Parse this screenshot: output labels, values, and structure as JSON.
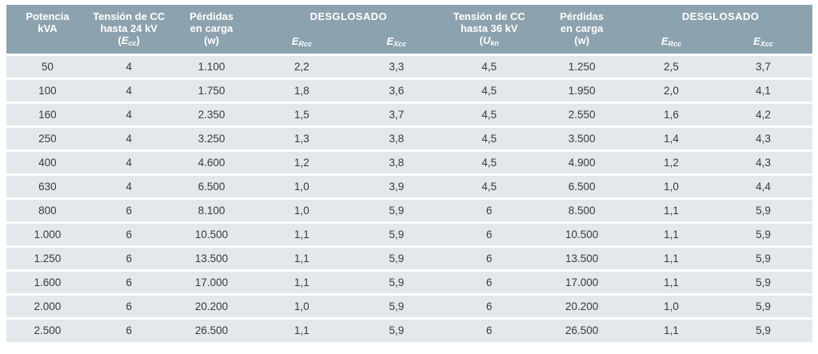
{
  "colors": {
    "header-bg": "#8CA2AE",
    "row-bg": "#E2E8EB",
    "header-text": "#FFFFFF",
    "body-text": "#3A3A3A",
    "page-bg": "#FFFFFF"
  },
  "header": {
    "potencia": {
      "line1": "Potencia",
      "line2": "kVA"
    },
    "tension24": {
      "line1": "Tensión de CC",
      "line2": "hasta 24 kV",
      "sym": {
        "pre": "(",
        "letter": "E",
        "sub": "cc",
        "post": ")"
      }
    },
    "perdidas24": {
      "line1": "Pérdidas",
      "line2": "en carga",
      "line3": "(w)"
    },
    "desglosado24": {
      "title": "DESGLOSADO",
      "ercc": {
        "letter": "E",
        "sub": "Rcc"
      },
      "excc": {
        "letter": "E",
        "sub": "Xcc"
      }
    },
    "tension36": {
      "line1": "Tensión de CC",
      "line2": "hasta 36 kV",
      "sym": {
        "pre": "(",
        "letter": "U",
        "sub": "kn",
        "post": ""
      }
    },
    "perdidas36": {
      "line1": "Pérdidas",
      "line2": "en carga",
      "line3": "(w)"
    },
    "desglosado36": {
      "title": "DESGLOSADO",
      "ercc": {
        "letter": "E",
        "sub": "Rcc"
      },
      "excc": {
        "letter": "E",
        "sub": "Xcc"
      }
    }
  },
  "columns": [
    "potencia-kva",
    "tension-24kv",
    "perdidas-24kv",
    "ercc-24kv",
    "excc-24kv",
    "tension-36kv",
    "perdidas-36kv",
    "ercc-36kv",
    "excc-36kv"
  ],
  "rows": [
    [
      "50",
      "4",
      "1.100",
      "2,2",
      "3,3",
      "4,5",
      "1.250",
      "2,5",
      "3,7"
    ],
    [
      "100",
      "4",
      "1.750",
      "1,8",
      "3,6",
      "4,5",
      "1.950",
      "2,0",
      "4,1"
    ],
    [
      "160",
      "4",
      "2.350",
      "1,5",
      "3,7",
      "4,5",
      "2.550",
      "1,6",
      "4,2"
    ],
    [
      "250",
      "4",
      "3.250",
      "1,3",
      "3,8",
      "4,5",
      "3.500",
      "1,4",
      "4,3"
    ],
    [
      "400",
      "4",
      "4.600",
      "1,2",
      "3,8",
      "4,5",
      "4.900",
      "1,2",
      "4,3"
    ],
    [
      "630",
      "4",
      "6.500",
      "1,0",
      "3,9",
      "4,5",
      "6.500",
      "1,0",
      "4,4"
    ],
    [
      "800",
      "6",
      "8.100",
      "1,0",
      "5,9",
      "6",
      "8.500",
      "1,1",
      "5,9"
    ],
    [
      "1.000",
      "6",
      "10.500",
      "1,1",
      "5,9",
      "6",
      "10.500",
      "1,1",
      "5,9"
    ],
    [
      "1.250",
      "6",
      "13.500",
      "1,1",
      "5,9",
      "6",
      "13.500",
      "1,1",
      "5,9"
    ],
    [
      "1.600",
      "6",
      "17.000",
      "1,1",
      "5,9",
      "6",
      "17.000",
      "1,1",
      "5,9"
    ],
    [
      "2.000",
      "6",
      "20.200",
      "1,0",
      "5,9",
      "6",
      "20.200",
      "1,0",
      "5,9"
    ],
    [
      "2.500",
      "6",
      "26.500",
      "1,1",
      "5,9",
      "6",
      "26.500",
      "1,1",
      "5,9"
    ]
  ]
}
